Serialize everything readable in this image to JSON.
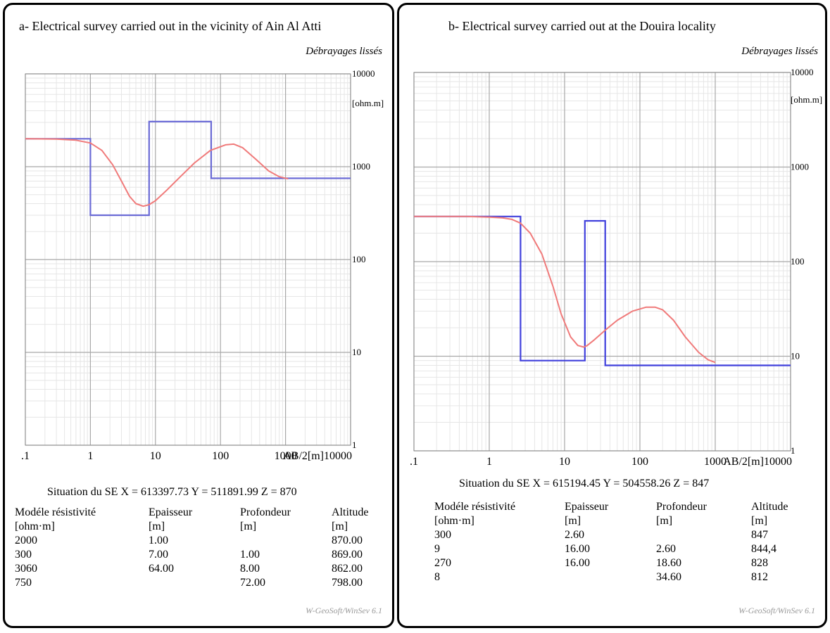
{
  "chart_data": [
    {
      "type": "line",
      "title": "a- Electrical survey carried out in the vicinity of Ain Al Atti",
      "subtitle": "Débrayages lissés",
      "x_scale": "log",
      "y_scale": "log",
      "xlim": [
        0.1,
        10000
      ],
      "ylim": [
        1,
        10000
      ],
      "x_tick_labels": [
        ".1",
        "1",
        "10",
        "100",
        "1000"
      ],
      "x_axis_label": "AB/2[m]10000",
      "y_tick_labels": [
        "1",
        "10",
        "100",
        "1000",
        "10000"
      ],
      "y_unit_label": "[ohm.m]",
      "grid": true,
      "series": [
        {
          "kind": "model",
          "color": "#6b6bd6",
          "x": [
            0.1,
            1,
            1,
            8,
            8,
            72,
            72,
            10000
          ],
          "y": [
            2000,
            2000,
            300,
            300,
            3060,
            3060,
            750,
            750
          ]
        },
        {
          "kind": "smoothed",
          "color": "#f07a7a",
          "x": [
            0.1,
            0.3,
            0.6,
            1,
            1.5,
            2.2,
            3,
            4,
            5,
            6.5,
            8,
            10,
            15,
            25,
            40,
            70,
            120,
            160,
            220,
            350,
            550,
            800,
            1100
          ],
          "y": [
            2000,
            1980,
            1930,
            1800,
            1500,
            1050,
            700,
            480,
            400,
            375,
            390,
            430,
            560,
            800,
            1100,
            1500,
            1720,
            1750,
            1600,
            1200,
            900,
            780,
            740
          ]
        }
      ],
      "situation": "Situation du SE X = 613397.73 Y = 511891.99 Z = 870",
      "table": {
        "headers": [
          "Modéle résistivité",
          "Epaisseur",
          "Profondeur",
          "Altitude"
        ],
        "units": [
          "[ohm·m]",
          "[m]",
          "[m]",
          "[m]"
        ],
        "rows": [
          [
            "2000",
            "1.00",
            "",
            "870.00"
          ],
          [
            "300",
            "7.00",
            "1.00",
            "869.00"
          ],
          [
            "3060",
            "64.00",
            "8.00",
            "862.00"
          ],
          [
            "750",
            "",
            "72.00",
            "798.00"
          ]
        ]
      },
      "footer": "W-GeoSoft/WinSev 6.1"
    },
    {
      "type": "line",
      "title": "b- Electrical survey carried out at the Douira locality",
      "subtitle": "Débrayages lissés",
      "x_scale": "log",
      "y_scale": "log",
      "xlim": [
        0.1,
        10000
      ],
      "ylim": [
        1,
        10000
      ],
      "x_tick_labels": [
        ".1",
        "1",
        "10",
        "100",
        "1000"
      ],
      "x_axis_label": "AB/2[m]10000",
      "y_tick_labels": [
        "1",
        "10",
        "100",
        "1000",
        "10000"
      ],
      "y_unit_label": "[ohm.m]",
      "grid": true,
      "series": [
        {
          "kind": "model",
          "color": "#3f3fdc",
          "x": [
            0.1,
            2.6,
            2.6,
            18.6,
            18.6,
            34.6,
            34.6,
            10000
          ],
          "y": [
            300,
            300,
            9,
            9,
            270,
            270,
            8,
            8
          ]
        },
        {
          "kind": "smoothed",
          "color": "#f07a7a",
          "x": [
            0.1,
            0.5,
            1,
            1.5,
            2,
            2.6,
            3.5,
            5,
            7,
            9,
            12,
            15,
            18,
            20,
            25,
            35,
            50,
            80,
            120,
            160,
            200,
            280,
            400,
            600,
            800,
            1000
          ],
          "y": [
            300,
            300,
            295,
            290,
            280,
            255,
            200,
            120,
            55,
            28,
            16,
            13,
            12.5,
            13,
            15,
            19,
            24,
            30,
            33,
            33,
            31,
            24,
            16,
            11,
            9.2,
            8.6
          ]
        }
      ],
      "situation": "Situation du SE X = 615194.45 Y = 504558.26 Z = 847",
      "table": {
        "headers": [
          "Modéle résistivité",
          "Epaisseur",
          "Profondeur",
          "Altitude"
        ],
        "units": [
          "[ohm·m]",
          "[m]",
          "[m]",
          "[m]"
        ],
        "rows": [
          [
            "300",
            "2.60",
            "",
            "847"
          ],
          [
            "9",
            "16.00",
            "2.60",
            "844,4"
          ],
          [
            "270",
            "16.00",
            "18.60",
            "828"
          ],
          [
            "8",
            "",
            "34.60",
            "812"
          ]
        ]
      },
      "footer": "W-GeoSoft/WinSev 6.1"
    }
  ]
}
